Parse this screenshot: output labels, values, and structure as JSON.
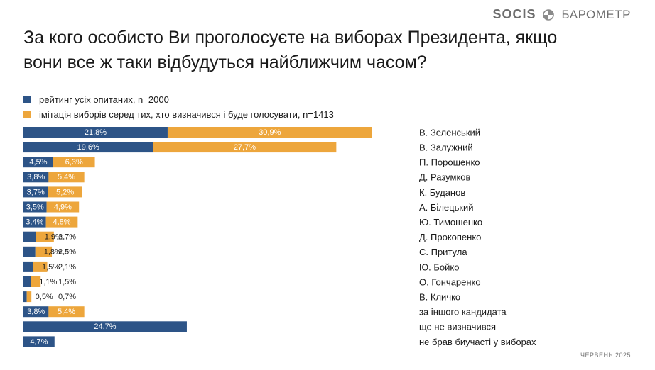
{
  "header": {
    "logo": "SOCIS",
    "brand": "БАРОМЕТР"
  },
  "title": "За кого особисто Ви проголосуєте на виборах Президента, якщо вони все ж таки відбудуться найближчим часом?",
  "footer": {
    "date": "ЧЕРВЕНЬ 2025"
  },
  "colors": {
    "blue": "#2D5487",
    "orange": "#EDA63C"
  },
  "chart_data": {
    "type": "bar",
    "orientation": "horizontal",
    "stacked": true,
    "categories": [
      "В. Зеленський",
      "В. Залужний",
      "П. Порошенко",
      "Д. Разумков",
      "К. Буданов",
      "А. Білецький",
      "Ю. Тимошенко",
      "Д. Прокопенко",
      "С. Притула",
      "Ю. Бойко",
      "О. Гончаренко",
      "В. Кличко",
      "за іншого кандидата",
      "ще не визначився",
      "не брав биучасті у виборах"
    ],
    "series": [
      {
        "name": "рейтинг усіх опитаних, n=2000",
        "color": "#2D5487",
        "values": [
          21.8,
          19.6,
          4.5,
          3.8,
          3.7,
          3.5,
          3.4,
          1.9,
          1.8,
          1.5,
          1.1,
          0.5,
          3.8,
          24.7,
          4.7
        ],
        "labels": [
          "21,8%",
          "19,6%",
          "4,5%",
          "3,8%",
          "3,7%",
          "3,5%",
          "3,4%",
          "1,9%",
          "1,8%",
          "1,5%",
          "1,1%",
          "0,5%",
          "3,8%",
          "24,7%",
          "4,7%"
        ]
      },
      {
        "name": "імітація виборів серед тих, хто визначився і буде голосувати, n=1413",
        "color": "#EDA63C",
        "values": [
          30.9,
          27.7,
          6.3,
          5.4,
          5.2,
          4.9,
          4.8,
          2.7,
          2.5,
          2.1,
          1.5,
          0.7,
          5.4,
          null,
          null
        ],
        "labels": [
          "30,9%",
          "27,7%",
          "6,3%",
          "5,4%",
          "5,2%",
          "4,9%",
          "4,8%",
          "2,7%",
          "2,5%",
          "2,1%",
          "1,5%",
          "0,7%",
          "5,4%",
          null,
          null
        ]
      }
    ],
    "legend_position": "top-left",
    "grid": false
  }
}
